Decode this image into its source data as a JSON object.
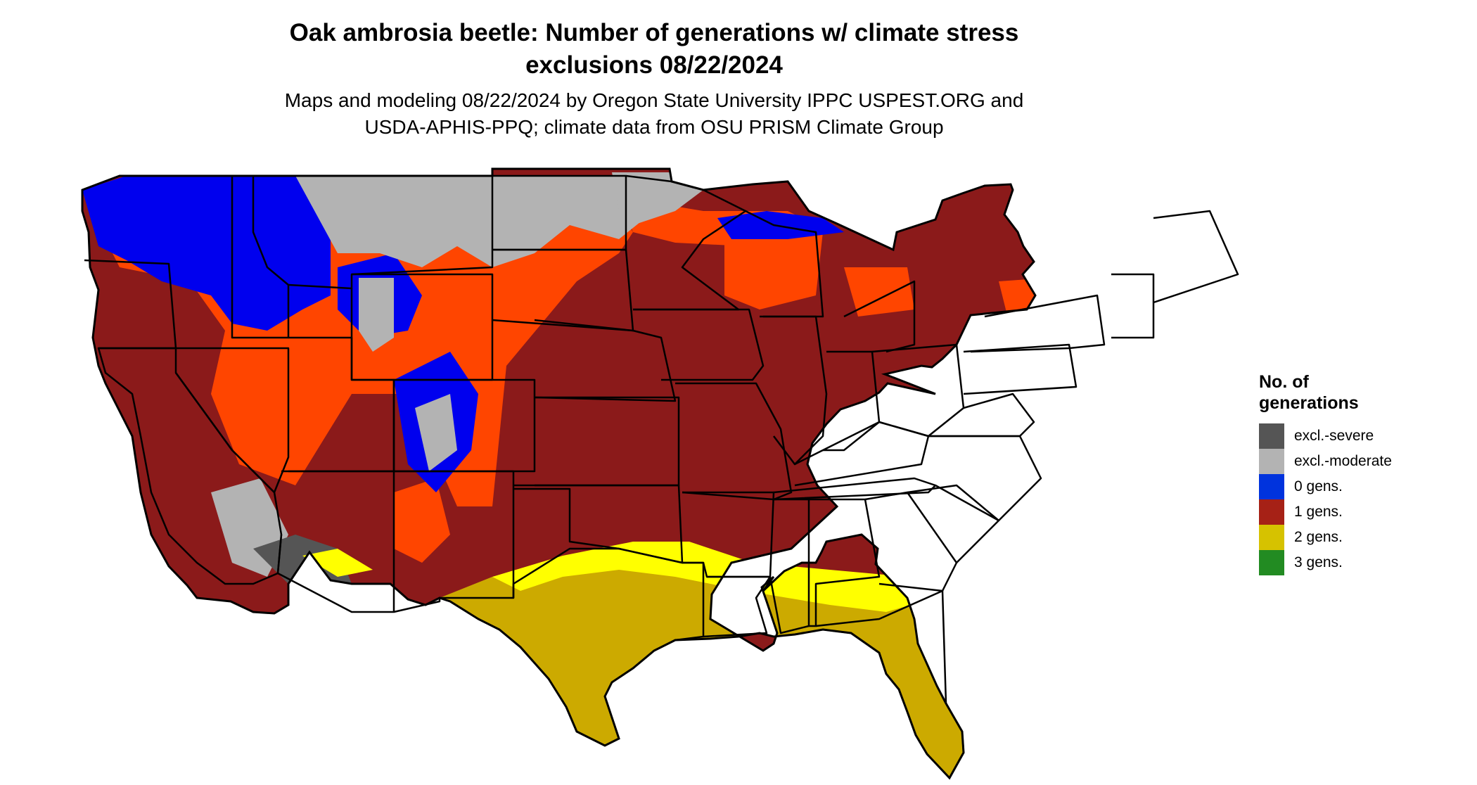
{
  "title": {
    "line1": "Oak ambrosia beetle: Number of generations w/ climate stress",
    "line2": "exclusions 08/22/2024"
  },
  "subtitle": {
    "line1": "Maps and modeling 08/22/2024 by Oregon State University IPPC USPEST.ORG and",
    "line2": "USDA-APHIS-PPQ; climate data from OSU PRISM Climate Group"
  },
  "legend": {
    "title": "No. of generations",
    "items": [
      {
        "label": "excl.-severe",
        "color": "#555555"
      },
      {
        "label": "excl.-moderate",
        "color": "#b3b3b3"
      },
      {
        "label": "0 gens.",
        "color": "#0033dd"
      },
      {
        "label": "1 gens.",
        "color": "#a62116"
      },
      {
        "label": "2 gens.",
        "color": "#d6c200"
      },
      {
        "label": "3 gens.",
        "color": "#228b22"
      }
    ]
  },
  "map_colors": {
    "base_1gen": "#8b1a1a",
    "high_elev_1gen": "#ff4500",
    "zero_gen": "#0000ee",
    "excl_moderate": "#b3b3b3",
    "excl_severe": "#555555",
    "two_gen": "#ccaa00",
    "two_gen_bright": "#ffff00",
    "state_border": "#000000"
  }
}
